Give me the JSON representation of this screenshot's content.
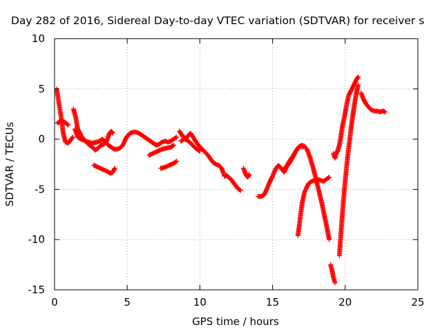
{
  "chart_data": {
    "type": "scatter",
    "title": "Day 282 of 2016, Sidereal Day-to-day VTEC variation (SDTVAR) for receiver s",
    "xlabel": "GPS time / hours",
    "ylabel": "SDTVAR / TECUs",
    "xlim": [
      0,
      25
    ],
    "ylim": [
      -15,
      10
    ],
    "xticks": [
      0,
      5,
      10,
      15,
      20,
      25
    ],
    "yticks": [
      -15,
      -10,
      -5,
      0,
      5,
      10
    ],
    "grid": true,
    "marker": "+",
    "color": "#ff0000",
    "series": [
      {
        "segments": [
          [
            [
              0.15,
              5.0
            ],
            [
              0.3,
              3.6
            ],
            [
              0.45,
              2.2
            ],
            [
              0.6,
              0.6
            ],
            [
              0.75,
              -0.3
            ],
            [
              0.95,
              -0.4
            ],
            [
              1.1,
              -0.1
            ],
            [
              1.25,
              0.2
            ]
          ],
          [
            [
              0.2,
              1.6
            ],
            [
              0.45,
              1.8
            ],
            [
              0.7,
              1.7
            ],
            [
              0.95,
              1.4
            ]
          ],
          [
            [
              1.3,
              3.0
            ],
            [
              1.45,
              2.2
            ],
            [
              1.6,
              1.0
            ],
            [
              1.8,
              0.4
            ],
            [
              2.0,
              0.0
            ],
            [
              2.2,
              -0.3
            ],
            [
              2.4,
              -0.6
            ],
            [
              2.6,
              -0.8
            ],
            [
              2.8,
              -1.1
            ],
            [
              3.0,
              -0.9
            ],
            [
              3.2,
              -0.6
            ],
            [
              3.4,
              -0.5
            ],
            [
              3.6,
              -0.2
            ],
            [
              3.75,
              0.5
            ],
            [
              3.9,
              0.8
            ],
            [
              4.0,
              0.6
            ]
          ],
          [
            [
              1.4,
              1.0
            ],
            [
              1.6,
              0.2
            ],
            [
              1.8,
              0.0
            ],
            [
              2.0,
              -0.1
            ],
            [
              2.3,
              -0.3
            ],
            [
              2.6,
              -0.4
            ],
            [
              2.9,
              -0.3
            ],
            [
              3.1,
              -0.2
            ],
            [
              3.3,
              0.0
            ],
            [
              3.5,
              -0.3
            ],
            [
              3.7,
              -0.6
            ],
            [
              3.9,
              -0.8
            ],
            [
              4.1,
              -1.0
            ],
            [
              4.3,
              -1.0
            ],
            [
              4.5,
              -0.9
            ],
            [
              4.7,
              -0.6
            ],
            [
              4.85,
              -0.1
            ],
            [
              5.0,
              0.3
            ],
            [
              5.2,
              0.6
            ],
            [
              5.4,
              0.7
            ],
            [
              5.6,
              0.7
            ],
            [
              5.8,
              0.6
            ],
            [
              6.0,
              0.4
            ],
            [
              6.2,
              0.2
            ],
            [
              6.4,
              0.0
            ],
            [
              6.6,
              -0.2
            ],
            [
              6.8,
              -0.4
            ],
            [
              7.0,
              -0.6
            ],
            [
              7.2,
              -0.5
            ],
            [
              7.4,
              -0.3
            ],
            [
              7.6,
              -0.2
            ],
            [
              7.8,
              -0.3
            ],
            [
              8.0,
              -0.2
            ],
            [
              8.2,
              0.0
            ],
            [
              8.4,
              0.2
            ]
          ],
          [
            [
              2.7,
              -2.6
            ],
            [
              3.0,
              -2.8
            ],
            [
              3.3,
              -3.0
            ],
            [
              3.6,
              -3.2
            ],
            [
              3.85,
              -3.4
            ],
            [
              4.0,
              -3.3
            ],
            [
              4.15,
              -2.9
            ]
          ],
          [
            [
              6.5,
              -1.6
            ],
            [
              6.8,
              -1.4
            ],
            [
              7.1,
              -1.2
            ],
            [
              7.4,
              -1.0
            ],
            [
              7.7,
              -0.9
            ],
            [
              8.0,
              -0.8
            ],
            [
              8.2,
              -0.6
            ]
          ],
          [
            [
              7.3,
              -2.9
            ],
            [
              7.6,
              -2.8
            ],
            [
              7.9,
              -2.6
            ],
            [
              8.2,
              -2.4
            ],
            [
              8.4,
              -2.2
            ]
          ],
          [
            [
              8.6,
              0.8
            ],
            [
              8.8,
              0.3
            ],
            [
              9.0,
              0.1
            ],
            [
              9.2,
              0.3
            ],
            [
              9.35,
              0.6
            ],
            [
              9.5,
              0.3
            ],
            [
              9.7,
              -0.2
            ],
            [
              9.9,
              -0.6
            ],
            [
              10.1,
              -0.9
            ],
            [
              10.3,
              -1.2
            ],
            [
              10.5,
              -1.5
            ],
            [
              10.7,
              -1.9
            ],
            [
              10.9,
              -2.3
            ],
            [
              11.1,
              -2.5
            ],
            [
              11.3,
              -2.6
            ],
            [
              11.5,
              -2.9
            ],
            [
              11.6,
              -3.3
            ],
            [
              11.7,
              -3.7
            ],
            [
              11.8,
              -3.6
            ],
            [
              12.0,
              -3.8
            ],
            [
              12.2,
              -4.1
            ],
            [
              12.4,
              -4.5
            ],
            [
              12.6,
              -4.9
            ],
            [
              12.8,
              -5.1
            ]
          ],
          [
            [
              8.7,
              -0.2
            ],
            [
              8.9,
              0.0
            ],
            [
              9.1,
              -0.1
            ],
            [
              9.3,
              -0.3
            ],
            [
              9.5,
              -0.6
            ],
            [
              9.7,
              -0.9
            ],
            [
              9.9,
              -1.1
            ],
            [
              10.0,
              -1.2
            ]
          ],
          [
            [
              13.0,
              -2.9
            ],
            [
              13.1,
              -3.3
            ],
            [
              13.2,
              -3.6
            ],
            [
              13.3,
              -3.8
            ],
            [
              13.4,
              -3.5
            ]
          ],
          [
            [
              14.0,
              -5.7
            ],
            [
              14.2,
              -5.7
            ],
            [
              14.4,
              -5.6
            ],
            [
              14.6,
              -5.0
            ],
            [
              14.8,
              -4.3
            ],
            [
              15.0,
              -3.7
            ],
            [
              15.2,
              -3.0
            ],
            [
              15.4,
              -2.6
            ],
            [
              15.6,
              -2.9
            ],
            [
              15.8,
              -3.3
            ],
            [
              16.0,
              -2.7
            ],
            [
              16.2,
              -2.3
            ],
            [
              16.4,
              -1.8
            ],
            [
              16.6,
              -1.2
            ],
            [
              16.8,
              -0.8
            ],
            [
              17.0,
              -0.6
            ],
            [
              17.2,
              -0.7
            ],
            [
              17.4,
              -1.1
            ],
            [
              17.6,
              -1.9
            ],
            [
              17.8,
              -2.9
            ],
            [
              18.0,
              -4.0
            ],
            [
              18.2,
              -5.2
            ],
            [
              18.4,
              -6.4
            ],
            [
              18.6,
              -7.8
            ],
            [
              18.8,
              -9.2
            ],
            [
              18.9,
              -10.0
            ]
          ],
          [
            [
              15.8,
              -3.0
            ],
            [
              16.0,
              -2.6
            ],
            [
              16.2,
              -2.1
            ],
            [
              16.4,
              -1.7
            ],
            [
              16.6,
              -1.2
            ],
            [
              16.8,
              -0.8
            ],
            [
              17.0,
              -0.7
            ],
            [
              17.1,
              -0.8
            ]
          ],
          [
            [
              16.75,
              -9.6
            ],
            [
              16.85,
              -8.5
            ],
            [
              16.95,
              -7.3
            ],
            [
              17.05,
              -6.3
            ],
            [
              17.2,
              -5.3
            ],
            [
              17.35,
              -4.8
            ],
            [
              17.5,
              -4.4
            ],
            [
              17.7,
              -4.2
            ],
            [
              17.9,
              -4.1
            ],
            [
              18.1,
              -4.0
            ],
            [
              18.3,
              -4.1
            ],
            [
              18.5,
              -4.2
            ],
            [
              18.7,
              -4.0
            ],
            [
              18.9,
              -3.8
            ]
          ],
          [
            [
              19.0,
              -12.5
            ],
            [
              19.1,
              -13.1
            ],
            [
              19.2,
              -13.8
            ],
            [
              19.3,
              -14.3
            ]
          ],
          [
            [
              19.2,
              -1.4
            ],
            [
              19.3,
              -1.9
            ],
            [
              19.4,
              -1.4
            ],
            [
              19.5,
              -1.1
            ],
            [
              19.6,
              -0.6
            ],
            [
              19.7,
              0.2
            ],
            [
              19.8,
              1.2
            ],
            [
              19.95,
              2.2
            ],
            [
              20.1,
              3.4
            ],
            [
              20.25,
              4.4
            ],
            [
              20.4,
              4.8
            ],
            [
              20.6,
              5.4
            ],
            [
              20.8,
              6.0
            ],
            [
              20.9,
              6.2
            ]
          ],
          [
            [
              19.6,
              -11.6
            ],
            [
              19.7,
              -9.6
            ],
            [
              19.8,
              -7.6
            ],
            [
              19.9,
              -5.8
            ],
            [
              20.0,
              -4.2
            ],
            [
              20.1,
              -2.7
            ],
            [
              20.2,
              -1.4
            ],
            [
              20.3,
              -0.2
            ],
            [
              20.4,
              1.0
            ],
            [
              20.5,
              2.1
            ],
            [
              20.6,
              3.1
            ],
            [
              20.7,
              4.0
            ],
            [
              20.8,
              4.8
            ],
            [
              20.9,
              5.4
            ]
          ],
          [
            [
              21.1,
              4.6
            ],
            [
              21.25,
              4.0
            ],
            [
              21.4,
              3.6
            ],
            [
              21.6,
              3.2
            ],
            [
              21.8,
              2.9
            ],
            [
              22.0,
              2.8
            ],
            [
              22.2,
              2.8
            ],
            [
              22.4,
              2.7
            ],
            [
              22.6,
              2.8
            ],
            [
              22.75,
              2.7
            ]
          ]
        ]
      }
    ]
  }
}
